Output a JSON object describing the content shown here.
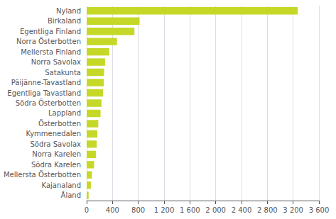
{
  "chart_data": {
    "type": "bar",
    "orientation": "horizontal",
    "categories": [
      "Åland",
      "Kajanaland",
      "Mellersta Österbotten",
      "Södra Karelen",
      "Norra Karelen",
      "Södra Savolax",
      "Kymmenedalen",
      "Österbotten",
      "Lappland",
      "Södra Österbotten",
      "Egentliga Tavastland",
      "Päijänne-Tavastland",
      "Satakunta",
      "Norra Savolax",
      "Mellersta Finland",
      "Norra Österbotten",
      "Egentliga Finland",
      "Birkaland",
      "Nyland"
    ],
    "values": [
      30,
      65,
      80,
      115,
      145,
      155,
      165,
      180,
      215,
      230,
      255,
      265,
      270,
      285,
      350,
      470,
      740,
      820,
      3270
    ],
    "color": "#c5d827",
    "xlim": [
      0,
      3600
    ],
    "xticks": [
      0,
      400,
      800,
      {
        "value": 1200,
        "label": "1 200"
      },
      {
        "value": 1600,
        "label": "1 600"
      },
      {
        "value": 2000,
        "label": "2 000"
      },
      {
        "value": 2400,
        "label": "2 400"
      },
      {
        "value": 2800,
        "label": "2 800"
      },
      {
        "value": 3200,
        "label": "3 200"
      },
      {
        "value": 3600,
        "label": "3 600"
      }
    ],
    "grid": true
  }
}
